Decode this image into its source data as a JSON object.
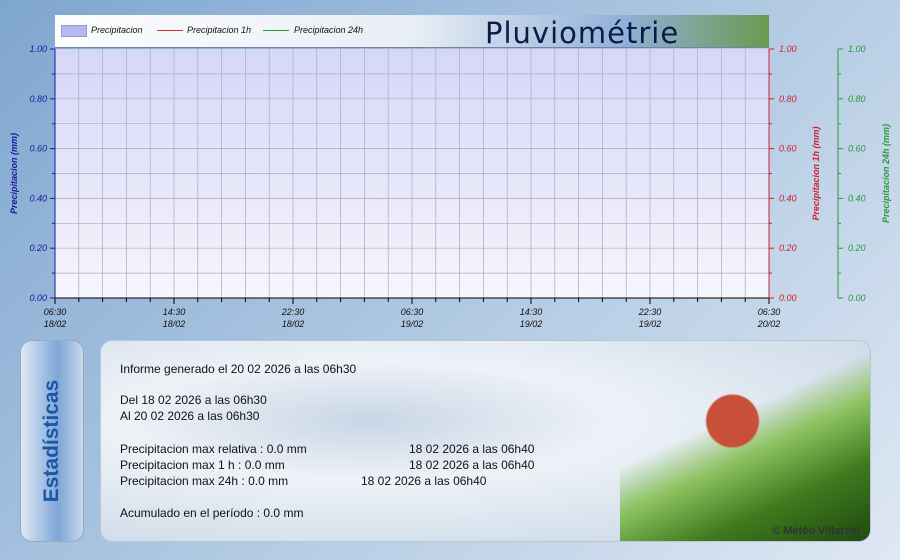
{
  "header": {
    "title": "Pluviométrie",
    "legend": [
      "Precipitacion",
      "Precipitacion 1h",
      "Precipitacion 24h"
    ]
  },
  "chart_data": {
    "type": "bar",
    "x": [
      "06:30 18/02",
      "14:30 18/02",
      "22:30 18/02",
      "06:30 19/02",
      "14:30 19/02",
      "22:30 19/02",
      "06:30 20/02"
    ],
    "x_tick_time": [
      "06:30",
      "14:30",
      "22:30",
      "06:30",
      "14:30",
      "22:30",
      "06:30"
    ],
    "x_tick_date": [
      "18/02",
      "18/02",
      "18/02",
      "19/02",
      "19/02",
      "19/02",
      "20/02"
    ],
    "series": [
      {
        "name": "Precipitacion",
        "type": "bar",
        "color": "#b8b8f0",
        "values": [
          0,
          0,
          0,
          0,
          0,
          0,
          0
        ]
      },
      {
        "name": "Precipitacion 1h",
        "type": "line",
        "color": "#e03030",
        "values": [
          0,
          0,
          0,
          0,
          0,
          0,
          0
        ]
      },
      {
        "name": "Precipitacion 24h",
        "type": "line",
        "color": "#2a9a2a",
        "values": [
          0,
          0,
          0,
          0,
          0,
          0,
          0
        ]
      }
    ],
    "axes": [
      {
        "label": "Precipitacion (mm)",
        "color": "#1a1aa0",
        "ylim": [
          0,
          1
        ],
        "ticks": [
          "0.00",
          "0.20",
          "0.40",
          "0.60",
          "0.80",
          "1.00"
        ]
      },
      {
        "label": "Precipitacion 1h (mm)",
        "color": "#d02030",
        "ylim": [
          0,
          1
        ],
        "ticks": [
          "0.00",
          "0.20",
          "0.40",
          "0.60",
          "0.80",
          "1.00"
        ]
      },
      {
        "label": "Precipitacion 24h (mm)",
        "color": "#2a9a3a",
        "ylim": [
          0,
          1
        ],
        "ticks": [
          "0.00",
          "0.20",
          "0.40",
          "0.60",
          "0.80",
          "1.00"
        ]
      }
    ],
    "grid": true,
    "legend": "top-left"
  },
  "stats": {
    "tab_label": "Estadísticas",
    "generated": "Informe generado el 20 02 2026 a las 06h30",
    "from": "Del 18 02 2026 a las 06h30",
    "to": "Al 20 02 2026 a las 06h30",
    "max_rel": "Precipitacion max relativa : 0.0 mm",
    "max_rel_date": "18 02 2026 a las 06h40",
    "max_1h": "Precipitacion max 1 h :   0.0 mm",
    "max_1h_date": "18 02 2026 a las 06h40",
    "max_24h": "Precipitacion max 24h :  0.0 mm",
    "max_24h_date": "18 02 2026 a las 06h40",
    "accum": "Acumulado en el período : 0.0 mm"
  },
  "copyright": "© Météo Villarzel"
}
